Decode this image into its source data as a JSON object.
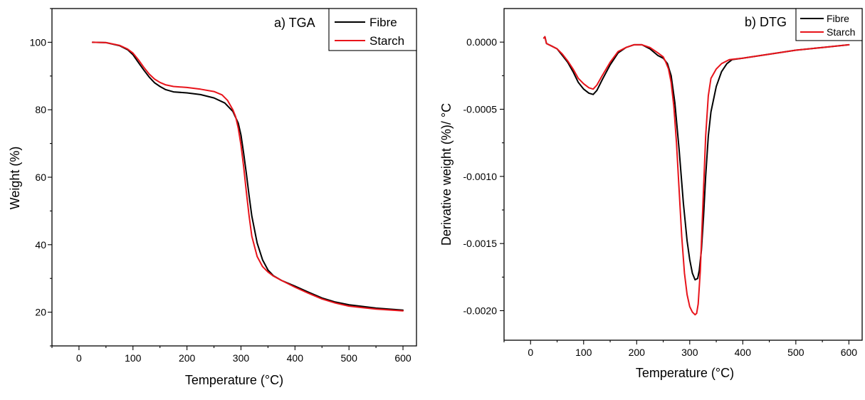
{
  "chart_data": [
    {
      "type": "line",
      "title": "a) TGA",
      "xlabel": "Temperature (°C)",
      "ylabel": "Weight (%)",
      "xlim": [
        -50,
        625
      ],
      "ylim": [
        10,
        110
      ],
      "xticks": [
        0,
        100,
        200,
        300,
        400,
        500,
        600
      ],
      "yticks": [
        20,
        40,
        60,
        80,
        100
      ],
      "legend_position": "top-right",
      "grid": false,
      "series": [
        {
          "name": "Fibre",
          "color": "#000000",
          "x": [
            25,
            50,
            75,
            90,
            100,
            110,
            120,
            130,
            140,
            150,
            160,
            175,
            200,
            225,
            250,
            270,
            285,
            295,
            300,
            305,
            310,
            315,
            320,
            330,
            340,
            350,
            360,
            375,
            400,
            425,
            450,
            475,
            500,
            550,
            600
          ],
          "y": [
            100,
            99.9,
            99.0,
            97.8,
            96.3,
            94.0,
            91.8,
            89.7,
            88.0,
            86.9,
            86.0,
            85.3,
            85.0,
            84.5,
            83.5,
            82.0,
            79.5,
            76.0,
            72.5,
            67.0,
            61.0,
            54.5,
            48.5,
            40.5,
            35.5,
            32.5,
            30.8,
            29.4,
            27.7,
            25.9,
            24.2,
            23.0,
            22.2,
            21.2,
            20.6
          ]
        },
        {
          "name": "Starch",
          "color": "#e8141b",
          "x": [
            25,
            50,
            75,
            90,
            100,
            110,
            120,
            130,
            140,
            150,
            160,
            175,
            200,
            225,
            250,
            265,
            275,
            285,
            290,
            295,
            300,
            305,
            310,
            315,
            320,
            330,
            340,
            350,
            360,
            375,
            400,
            425,
            450,
            475,
            500,
            550,
            600
          ],
          "y": [
            100,
            99.9,
            99.1,
            98.0,
            96.8,
            94.8,
            92.6,
            90.6,
            89.1,
            88.1,
            87.4,
            86.9,
            86.6,
            86.1,
            85.4,
            84.4,
            82.8,
            80.0,
            78.0,
            74.5,
            69.5,
            63.0,
            55.5,
            48.5,
            42.5,
            36.5,
            33.5,
            31.9,
            30.7,
            29.4,
            27.4,
            25.6,
            23.9,
            22.7,
            21.8,
            20.9,
            20.4
          ]
        }
      ]
    },
    {
      "type": "line",
      "title": "b) DTG",
      "xlabel": "Temperature (°C)",
      "ylabel": "Derivative weight (%)/ °C",
      "xlim": [
        -50,
        625
      ],
      "ylim": [
        -0.00222,
        0.00025
      ],
      "xticks": [
        0,
        100,
        200,
        300,
        400,
        500,
        600
      ],
      "yticks": [
        0.0,
        -0.0005,
        -0.001,
        -0.0015,
        -0.002
      ],
      "legend_position": "top-right",
      "grid": false,
      "series": [
        {
          "name": "Fibre",
          "color": "#000000",
          "x": [
            25,
            27,
            30,
            40,
            50,
            60,
            70,
            80,
            90,
            100,
            110,
            118,
            125,
            135,
            150,
            165,
            180,
            195,
            210,
            225,
            240,
            250,
            258,
            265,
            272,
            280,
            288,
            295,
            300,
            305,
            310,
            315,
            318,
            322,
            326,
            330,
            335,
            340,
            350,
            360,
            370,
            380,
            400,
            450,
            500,
            550,
            600
          ],
          "y": [
            3e-05,
            4e-05,
            -1e-05,
            -3e-05,
            -5e-05,
            -0.0001,
            -0.00015,
            -0.00022,
            -0.0003,
            -0.00035,
            -0.00038,
            -0.00039,
            -0.00036,
            -0.00028,
            -0.00017,
            -8e-05,
            -4e-05,
            -2e-05,
            -2e-05,
            -5e-05,
            -0.0001,
            -0.00012,
            -0.00016,
            -0.00025,
            -0.00045,
            -0.0008,
            -0.0012,
            -0.00148,
            -0.00162,
            -0.00172,
            -0.00177,
            -0.00176,
            -0.0017,
            -0.00155,
            -0.0013,
            -0.001,
            -0.0007,
            -0.00052,
            -0.00033,
            -0.00022,
            -0.00016,
            -0.00013,
            -0.00012,
            -9e-05,
            -6e-05,
            -4e-05,
            -2e-05
          ]
        },
        {
          "name": "Starch",
          "color": "#e8141b",
          "x": [
            25,
            27,
            30,
            40,
            50,
            60,
            70,
            80,
            90,
            100,
            110,
            118,
            125,
            135,
            150,
            165,
            180,
            195,
            210,
            225,
            240,
            250,
            255,
            260,
            265,
            270,
            275,
            280,
            285,
            290,
            295,
            300,
            305,
            310,
            313,
            316,
            320,
            325,
            330,
            335,
            340,
            350,
            360,
            375,
            400,
            450,
            500,
            550,
            600
          ],
          "y": [
            3e-05,
            4e-05,
            -1e-05,
            -3e-05,
            -5e-05,
            -9e-05,
            -0.00014,
            -0.0002,
            -0.00027,
            -0.00031,
            -0.00034,
            -0.00035,
            -0.00032,
            -0.00025,
            -0.00015,
            -7e-05,
            -4e-05,
            -2e-05,
            -2e-05,
            -4e-05,
            -8e-05,
            -0.00011,
            -0.00015,
            -0.0002,
            -0.0003,
            -0.00048,
            -0.00075,
            -0.0011,
            -0.00145,
            -0.00172,
            -0.00188,
            -0.00197,
            -0.00201,
            -0.00203,
            -0.00202,
            -0.00195,
            -0.0017,
            -0.0012,
            -0.0007,
            -0.0004,
            -0.00027,
            -0.0002,
            -0.00016,
            -0.00013,
            -0.00012,
            -9e-05,
            -6e-05,
            -4e-05,
            -2e-05
          ]
        }
      ]
    }
  ]
}
